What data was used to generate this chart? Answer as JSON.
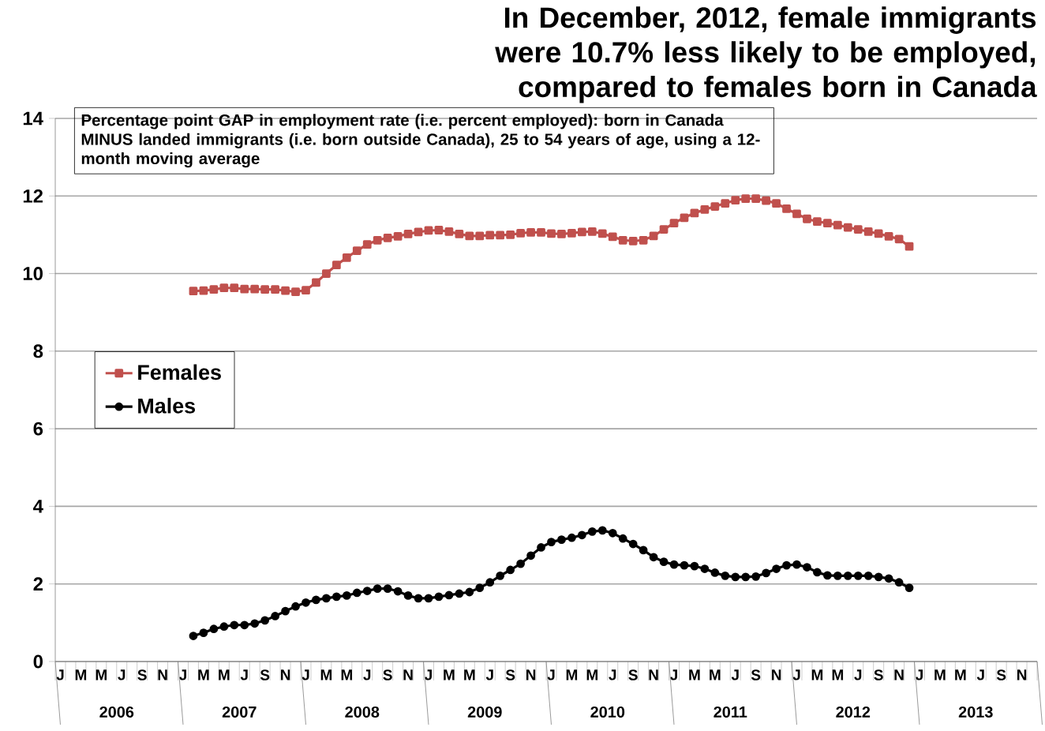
{
  "chart_data": {
    "type": "line",
    "title": "In December, 2012, female immigrants were 10.7% less likely to be employed, compared to females born in Canada",
    "annotations": [
      "Percentage point GAP in employment rate (i.e. percent employed): born in Canada MINUS landed immigrants (i.e. born outside Canada), 25 to 54 years of age, using a 12-month moving average",
      "2006",
      "2007",
      "2008",
      "2009",
      "2010",
      "2011",
      "2012",
      "2013"
    ],
    "categories": [
      "J",
      null,
      "M",
      null,
      "M",
      null,
      "J",
      null,
      "S",
      null,
      "N",
      null,
      "J",
      null,
      "M",
      null,
      "M",
      null,
      "J",
      null,
      "S",
      null,
      "N",
      null,
      "J",
      null,
      "M",
      null,
      "M",
      null,
      "J",
      null,
      "S",
      null,
      "N",
      null,
      "J",
      null,
      "M",
      null,
      "M",
      null,
      "J",
      null,
      "S",
      null,
      "N",
      null,
      "J",
      null,
      "M",
      null,
      "M",
      null,
      "J",
      null,
      "S",
      null,
      "N",
      null,
      "J",
      null,
      "M",
      null,
      "M",
      null,
      "J",
      null,
      "S",
      null,
      "N",
      null,
      "J",
      null,
      "M",
      null,
      "M",
      null,
      "J",
      null,
      "S",
      null,
      "N",
      null,
      "J",
      null,
      "M",
      null,
      "M",
      null,
      "J",
      null,
      "S",
      null,
      "N",
      null
    ],
    "series": [
      {
        "name": "Females",
        "color": "#c0504d",
        "marker": "square",
        "values": [
          null,
          null,
          null,
          null,
          null,
          null,
          null,
          null,
          null,
          null,
          null,
          null,
          null,
          9.55,
          9.56,
          9.59,
          9.63,
          9.63,
          9.6,
          9.6,
          9.59,
          9.59,
          9.56,
          9.53,
          9.57,
          9.77,
          10.0,
          10.22,
          10.41,
          10.59,
          10.75,
          10.86,
          10.92,
          10.96,
          11.02,
          11.07,
          11.11,
          11.12,
          11.08,
          11.02,
          10.97,
          10.97,
          10.99,
          10.99,
          11.0,
          11.04,
          11.06,
          11.06,
          11.03,
          11.02,
          11.04,
          11.07,
          11.08,
          11.03,
          10.95,
          10.86,
          10.84,
          10.86,
          10.97,
          11.14,
          11.3,
          11.44,
          11.56,
          11.65,
          11.73,
          11.81,
          11.89,
          11.93,
          11.93,
          11.88,
          11.81,
          11.67,
          11.54,
          11.41,
          11.34,
          11.3,
          11.25,
          11.19,
          11.14,
          11.08,
          11.03,
          10.96,
          10.89,
          10.7,
          null,
          null,
          null,
          null,
          null,
          null,
          null,
          null,
          null,
          null,
          null,
          null
        ]
      },
      {
        "name": "Males",
        "color": "#000000",
        "marker": "circle",
        "values": [
          null,
          null,
          null,
          null,
          null,
          null,
          null,
          null,
          null,
          null,
          null,
          null,
          null,
          0.66,
          0.74,
          0.84,
          0.9,
          0.94,
          0.94,
          0.98,
          1.06,
          1.17,
          1.3,
          1.42,
          1.52,
          1.59,
          1.63,
          1.67,
          1.7,
          1.77,
          1.82,
          1.88,
          1.88,
          1.81,
          1.7,
          1.63,
          1.63,
          1.67,
          1.71,
          1.75,
          1.79,
          1.9,
          2.04,
          2.21,
          2.36,
          2.52,
          2.73,
          2.94,
          3.08,
          3.14,
          3.19,
          3.26,
          3.35,
          3.38,
          3.31,
          3.17,
          3.03,
          2.87,
          2.69,
          2.57,
          2.5,
          2.48,
          2.46,
          2.39,
          2.29,
          2.21,
          2.18,
          2.18,
          2.19,
          2.28,
          2.39,
          2.48,
          2.5,
          2.43,
          2.3,
          2.22,
          2.21,
          2.21,
          2.21,
          2.21,
          2.18,
          2.14,
          2.04,
          1.9,
          null,
          null,
          null,
          null,
          null,
          null,
          null,
          null,
          null,
          null,
          null,
          null
        ]
      }
    ],
    "ylim": [
      0,
      14
    ],
    "yticks": [
      0,
      2,
      4,
      6,
      8,
      10,
      12,
      14
    ],
    "grid": "y",
    "legend": "left",
    "line_style": "solid"
  }
}
